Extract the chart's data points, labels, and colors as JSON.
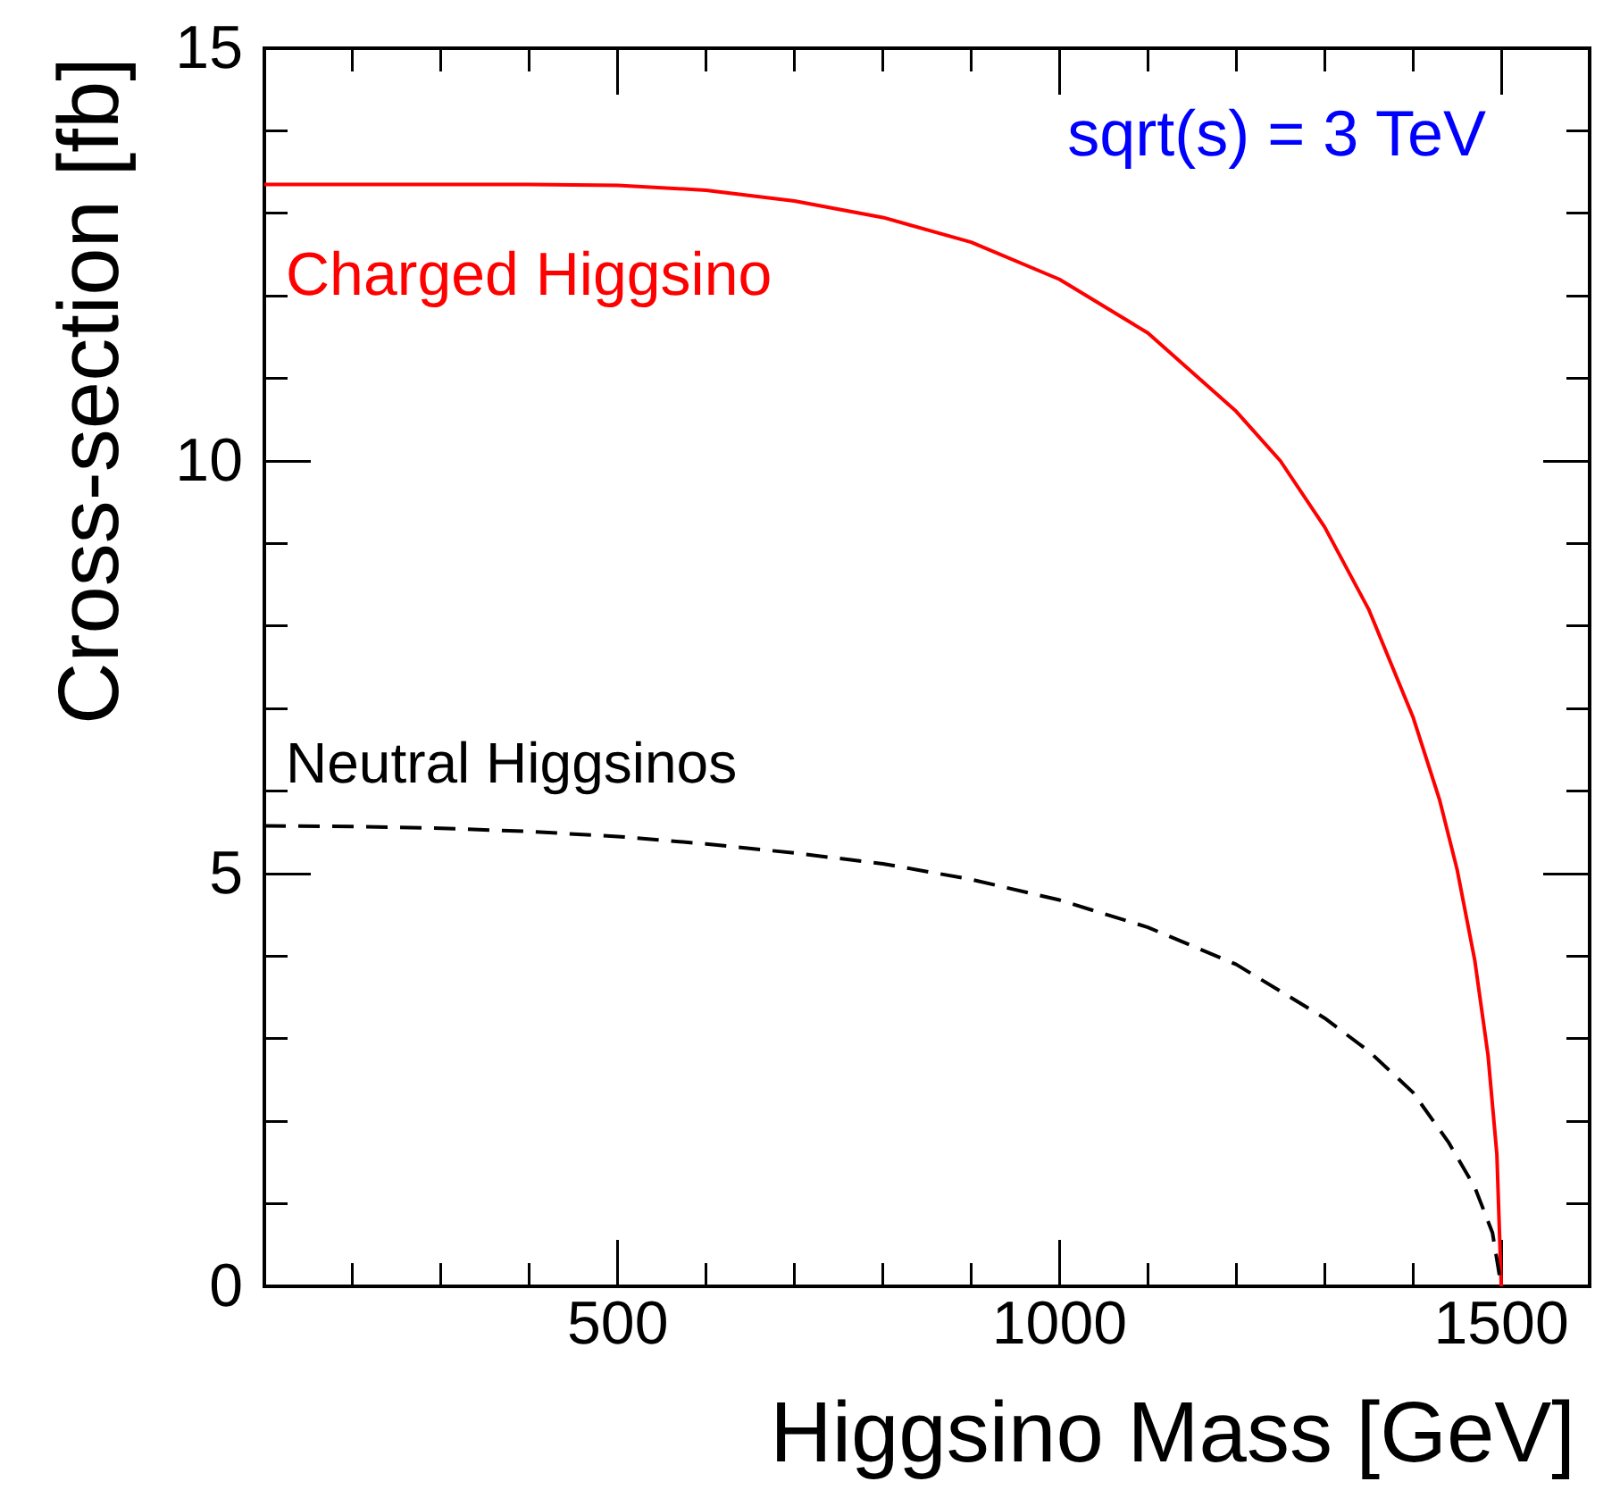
{
  "chart_data": {
    "type": "line",
    "xlabel": "Higgsino Mass  [GeV]",
    "ylabel": "Cross-section  [fb]",
    "annotations": [
      "sqrt(s) = 3 TeV"
    ],
    "xlim": [
      100,
      1600
    ],
    "ylim": [
      0,
      15
    ],
    "xticks": [
      {
        "value": 100,
        "label": null
      },
      {
        "value": 200,
        "label": null
      },
      {
        "value": 300,
        "label": null
      },
      {
        "value": 400,
        "label": null
      },
      500,
      {
        "value": 600,
        "label": null
      },
      {
        "value": 700,
        "label": null
      },
      {
        "value": 800,
        "label": null
      },
      {
        "value": 900,
        "label": null
      },
      1000,
      {
        "value": 1100,
        "label": null
      },
      {
        "value": 1200,
        "label": null
      },
      {
        "value": 1300,
        "label": null
      },
      {
        "value": 1400,
        "label": null
      },
      1500,
      {
        "value": 1600,
        "label": null
      }
    ],
    "yticks": [
      0,
      {
        "value": 1,
        "label": null
      },
      {
        "value": 2,
        "label": null
      },
      {
        "value": 3,
        "label": null
      },
      {
        "value": 4,
        "label": null
      },
      5,
      {
        "value": 6,
        "label": null
      },
      {
        "value": 7,
        "label": null
      },
      {
        "value": 8,
        "label": null
      },
      {
        "value": 9,
        "label": null
      },
      10,
      {
        "value": 11,
        "label": null
      },
      {
        "value": 12,
        "label": null
      },
      {
        "value": 13,
        "label": null
      },
      {
        "value": 14,
        "label": null
      },
      15
    ],
    "grid": false,
    "legend": false,
    "marker": "none",
    "series": [
      {
        "name": "Charged Higgsino",
        "color": "#ff0000",
        "line_style": "solid",
        "x": [
          100,
          200,
          300,
          400,
          500,
          600,
          700,
          800,
          900,
          1000,
          1100,
          1200,
          1250,
          1300,
          1350,
          1400,
          1430,
          1450,
          1470,
          1485,
          1495,
          1500
        ],
        "values": [
          13.35,
          13.35,
          13.35,
          13.35,
          13.34,
          13.28,
          13.15,
          12.95,
          12.65,
          12.2,
          11.55,
          10.6,
          10.0,
          9.2,
          8.2,
          6.9,
          5.9,
          5.05,
          3.95,
          2.8,
          1.6,
          0
        ]
      },
      {
        "name": "Neutral Higgsinos",
        "color": "#000000",
        "line_style": "dashed",
        "x": [
          100,
          200,
          300,
          400,
          500,
          600,
          700,
          800,
          900,
          1000,
          1100,
          1200,
          1300,
          1350,
          1400,
          1440,
          1470,
          1490,
          1500
        ],
        "values": [
          5.58,
          5.57,
          5.55,
          5.51,
          5.45,
          5.36,
          5.25,
          5.12,
          4.93,
          4.68,
          4.35,
          3.9,
          3.25,
          2.85,
          2.35,
          1.75,
          1.2,
          0.65,
          0
        ]
      }
    ]
  }
}
